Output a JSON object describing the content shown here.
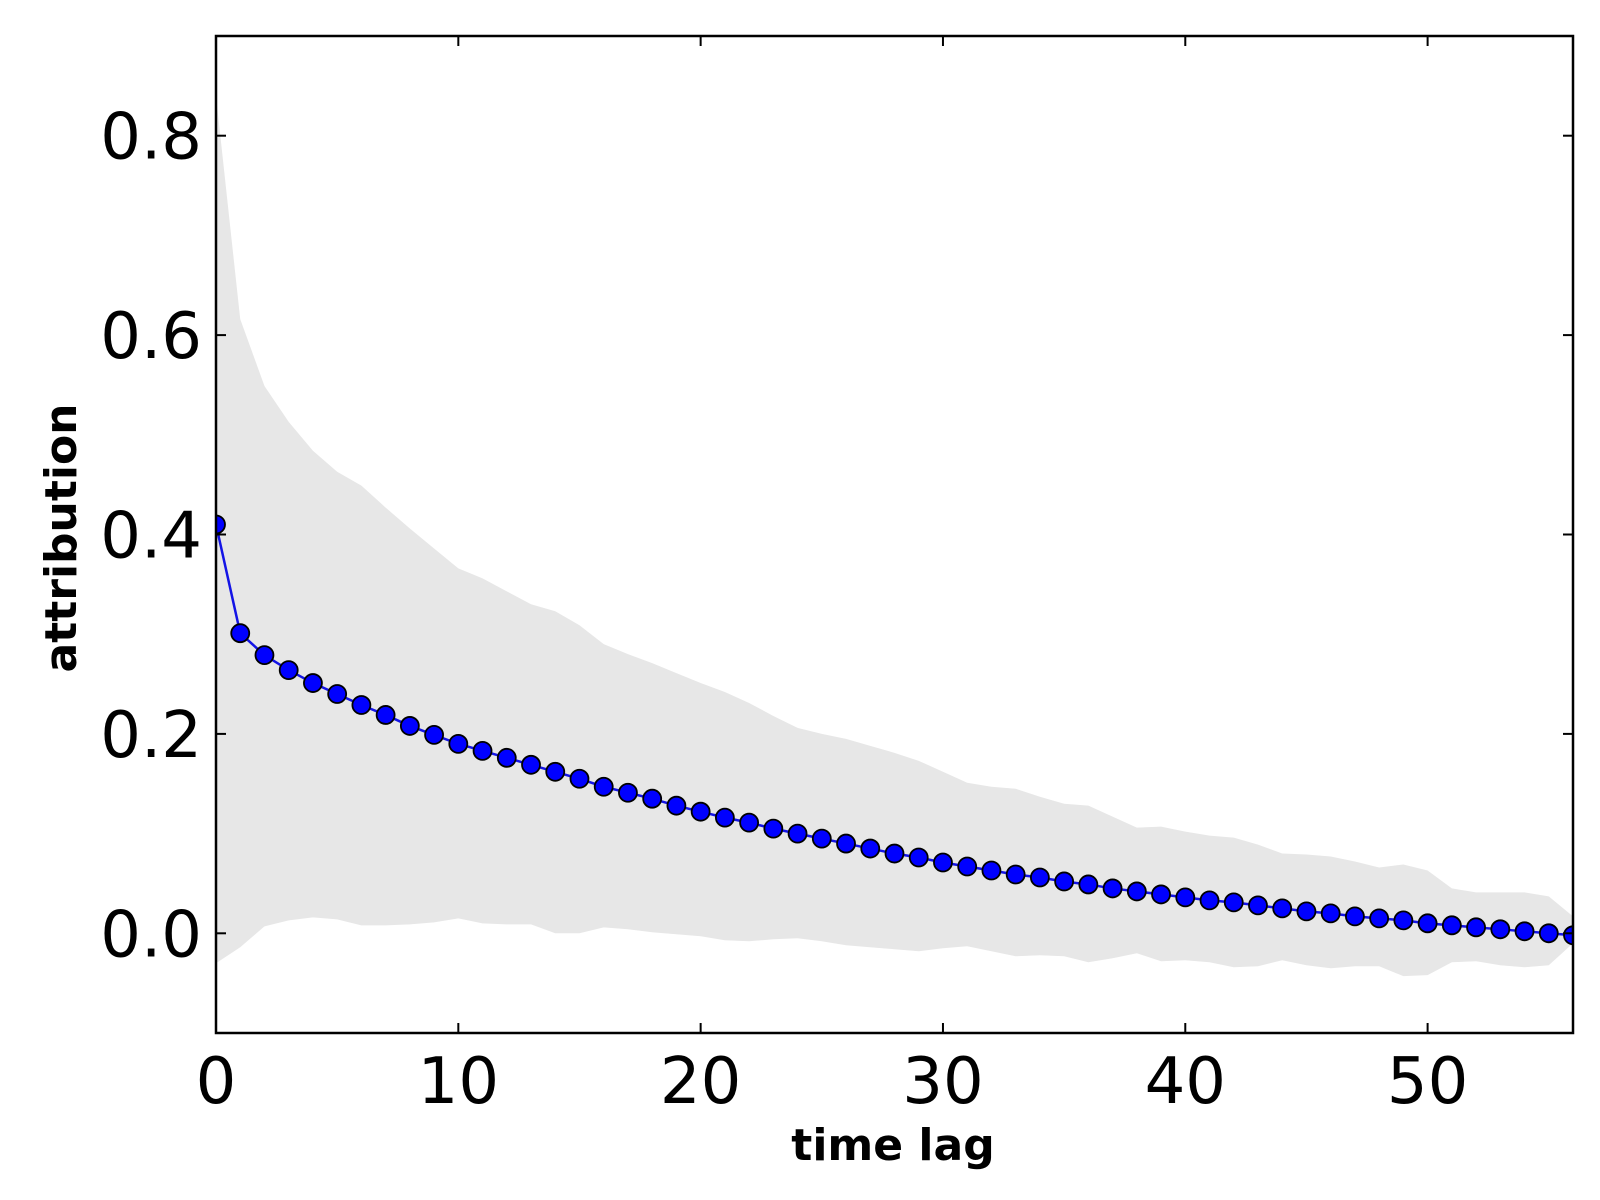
{
  "chart_data": {
    "type": "line",
    "title": "",
    "xlabel": "time lag",
    "ylabel": "attribution",
    "xlim": [
      0,
      56
    ],
    "ylim": [
      -0.1,
      0.9
    ],
    "x_ticks": [
      0,
      10,
      20,
      30,
      40,
      50
    ],
    "x_tick_labels": [
      "0",
      "10",
      "20",
      "30",
      "40",
      "50"
    ],
    "y_ticks": [
      0.0,
      0.2,
      0.4,
      0.6,
      0.8
    ],
    "y_tick_labels": [
      "0.0",
      "0.2",
      "0.4",
      "0.6",
      "0.8"
    ],
    "grid": false,
    "legend": "none",
    "colors": {
      "line": "#1414e6",
      "marker_fill": "#0000ff",
      "marker_edge": "#000000",
      "band": "#e7e7e7",
      "axes": "#000000"
    },
    "x": [
      0,
      1,
      2,
      3,
      4,
      5,
      6,
      7,
      8,
      9,
      10,
      11,
      12,
      13,
      14,
      15,
      16,
      17,
      18,
      19,
      20,
      21,
      22,
      23,
      24,
      25,
      26,
      27,
      28,
      29,
      30,
      31,
      32,
      33,
      34,
      35,
      36,
      37,
      38,
      39,
      40,
      41,
      42,
      43,
      44,
      45,
      46,
      47,
      48,
      49,
      50,
      51,
      52,
      53,
      54,
      55,
      56
    ],
    "series": [
      {
        "values": [
          0.41,
          0.301,
          0.279,
          0.264,
          0.251,
          0.24,
          0.229,
          0.219,
          0.208,
          0.199,
          0.19,
          0.183,
          0.176,
          0.169,
          0.162,
          0.155,
          0.147,
          0.141,
          0.135,
          0.128,
          0.122,
          0.116,
          0.111,
          0.105,
          0.1,
          0.095,
          0.09,
          0.085,
          0.08,
          0.076,
          0.071,
          0.067,
          0.063,
          0.059,
          0.056,
          0.052,
          0.049,
          0.045,
          0.042,
          0.039,
          0.036,
          0.033,
          0.031,
          0.028,
          0.025,
          0.022,
          0.02,
          0.017,
          0.015,
          0.013,
          0.01,
          0.008,
          0.006,
          0.004,
          0.002,
          0.0,
          -0.002
        ]
      }
    ],
    "band": {
      "x": [
        0,
        1,
        2,
        3,
        4,
        5,
        6,
        7,
        8,
        9,
        10,
        11,
        12,
        13,
        14,
        15,
        16,
        17,
        18,
        19,
        20,
        21,
        22,
        23,
        24,
        25,
        26,
        27,
        28,
        29,
        30,
        31,
        32,
        33,
        34,
        35,
        36,
        37,
        38,
        39,
        40,
        41,
        42,
        43,
        44,
        45,
        46,
        47,
        48,
        49,
        50,
        51,
        52,
        53,
        54,
        55,
        56
      ],
      "upper": [
        0.84,
        0.616,
        0.549,
        0.513,
        0.484,
        0.463,
        0.449,
        0.427,
        0.406,
        0.386,
        0.366,
        0.356,
        0.343,
        0.33,
        0.323,
        0.309,
        0.29,
        0.28,
        0.271,
        0.261,
        0.251,
        0.242,
        0.231,
        0.218,
        0.206,
        0.2,
        0.195,
        0.188,
        0.181,
        0.173,
        0.162,
        0.151,
        0.147,
        0.145,
        0.137,
        0.13,
        0.128,
        0.117,
        0.106,
        0.107,
        0.102,
        0.098,
        0.096,
        0.089,
        0.08,
        0.079,
        0.077,
        0.072,
        0.066,
        0.069,
        0.063,
        0.045,
        0.041,
        0.041,
        0.041,
        0.037,
        0.017
      ],
      "lower": [
        -0.03,
        -0.014,
        0.007,
        0.013,
        0.016,
        0.014,
        0.008,
        0.008,
        0.009,
        0.011,
        0.015,
        0.01,
        0.009,
        0.009,
        0.0,
        0.0,
        0.006,
        0.004,
        0.001,
        -0.001,
        -0.003,
        -0.007,
        -0.008,
        -0.006,
        -0.005,
        -0.008,
        -0.012,
        -0.014,
        -0.016,
        -0.018,
        -0.015,
        -0.013,
        -0.018,
        -0.023,
        -0.022,
        -0.023,
        -0.029,
        -0.025,
        -0.02,
        -0.028,
        -0.027,
        -0.029,
        -0.034,
        -0.033,
        -0.027,
        -0.032,
        -0.035,
        -0.033,
        -0.033,
        -0.043,
        -0.042,
        -0.029,
        -0.028,
        -0.032,
        -0.034,
        -0.032,
        -0.01
      ]
    }
  }
}
